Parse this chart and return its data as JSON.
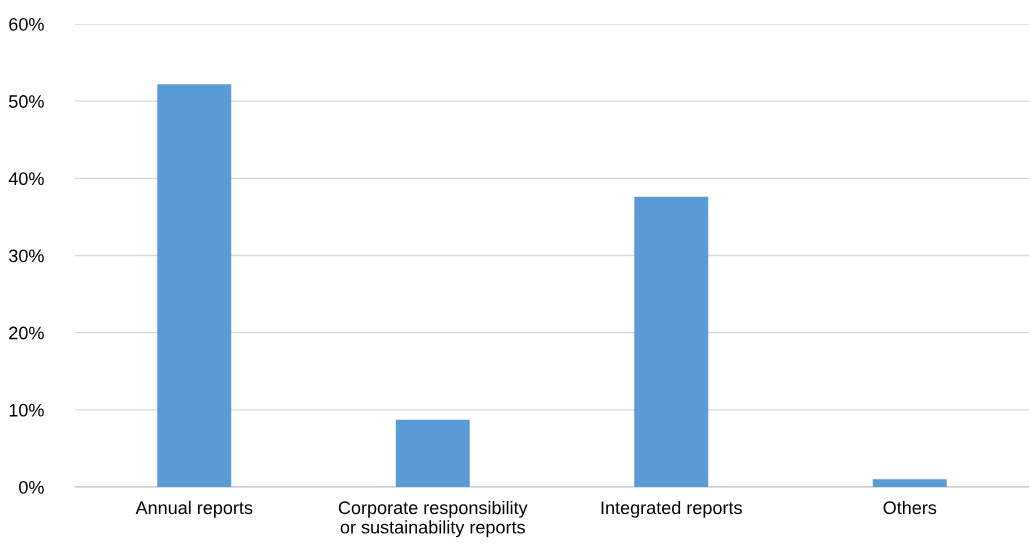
{
  "chart_data": {
    "type": "bar",
    "categories": [
      "Annual reports",
      "Corporate responsibility\nor sustainability reports",
      "Integrated reports",
      "Others"
    ],
    "values": [
      52.2,
      8.7,
      37.6,
      1.0
    ],
    "color": "#5b9bd5",
    "ylim": [
      0,
      60
    ],
    "yticks": [
      {
        "value": 0,
        "label": "0%"
      },
      {
        "value": 10,
        "label": "10%"
      },
      {
        "value": 20,
        "label": "20%"
      },
      {
        "value": 30,
        "label": "30%"
      },
      {
        "value": 40,
        "label": "40%"
      },
      {
        "value": 50,
        "label": "50%"
      },
      {
        "value": 60,
        "label": "60%"
      }
    ],
    "grid": "y",
    "legend": false
  }
}
